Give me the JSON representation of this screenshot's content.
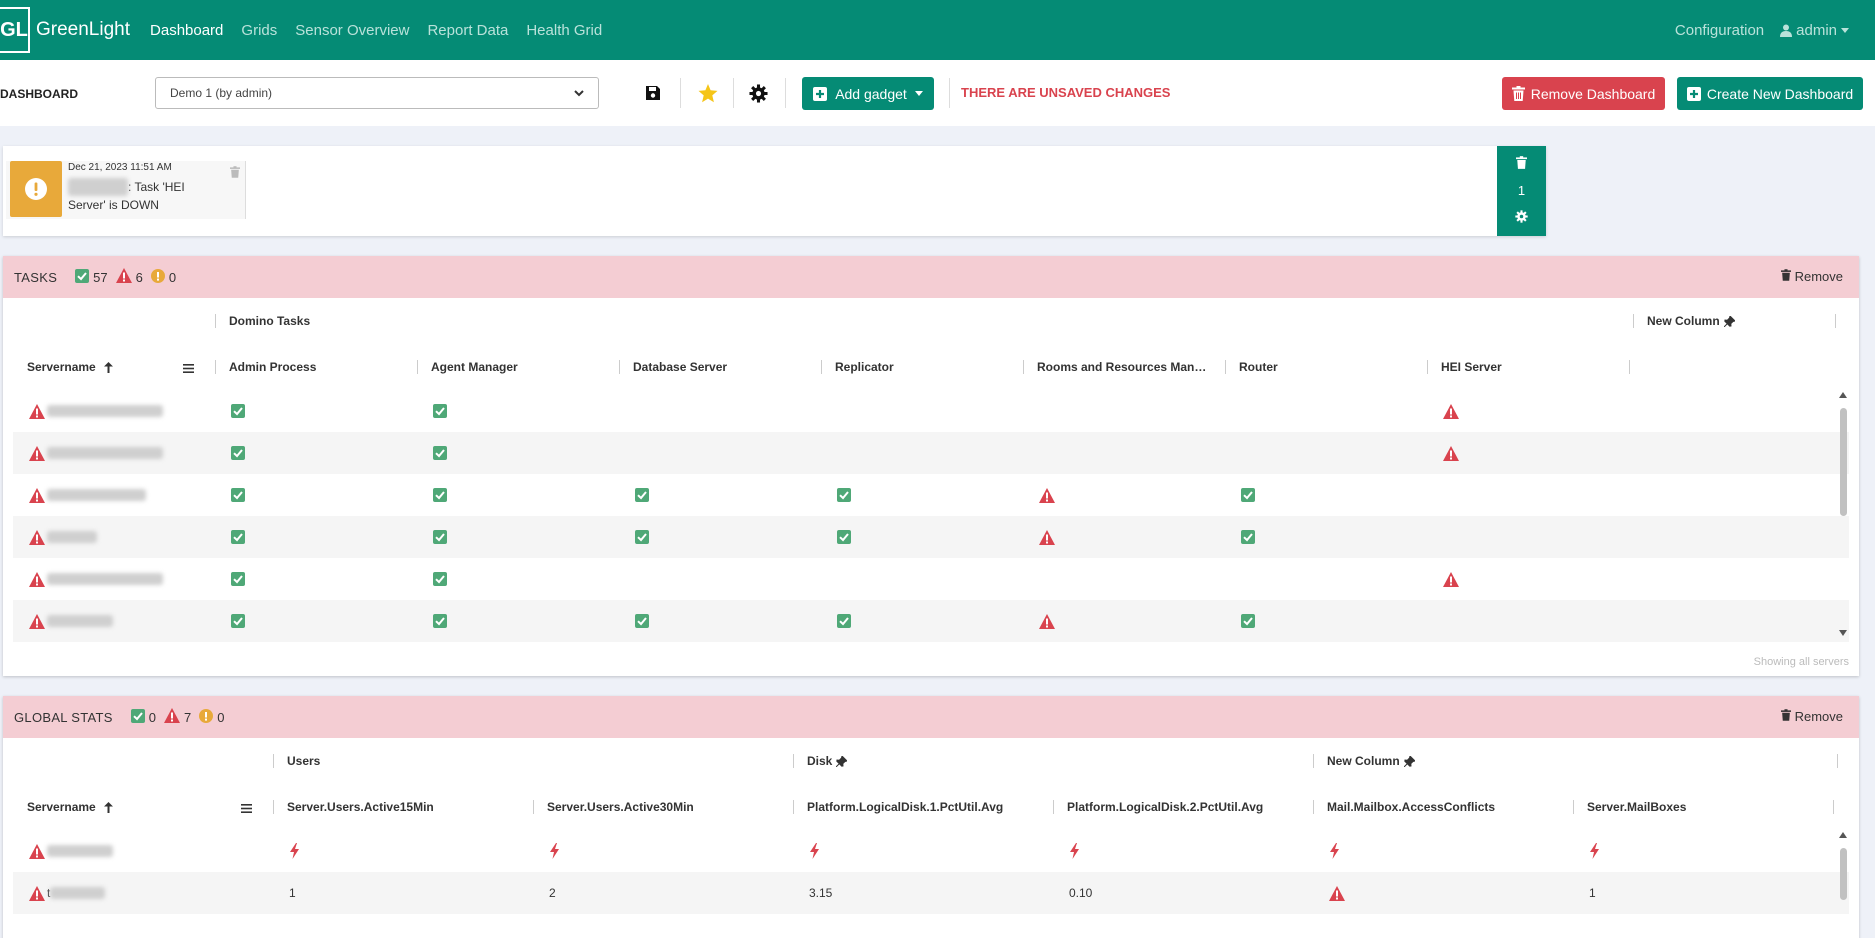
{
  "nav": {
    "brand_logo": "GL",
    "brand": "GreenLight",
    "links": [
      "Dashboard",
      "Grids",
      "Sensor Overview",
      "Report Data",
      "Health Grid"
    ],
    "configuration": "Configuration",
    "user": "admin"
  },
  "toolbar": {
    "label": "DASHBOARD",
    "selected_dashboard": "Demo 1 (by admin)",
    "add_gadget": "Add gadget",
    "unsaved": "THERE ARE UNSAVED CHANGES",
    "remove_dashboard": "Remove Dashboard",
    "create_dashboard": "Create New Dashboard"
  },
  "alert": {
    "date": "Dec 21, 2023 11:51 AM",
    "server_redacted": "xxxxxxxxxx",
    "message": ": Task 'HEI Server' is DOWN",
    "count": "1"
  },
  "tasks": {
    "title": "TASKS",
    "ok": "57",
    "error": "6",
    "warning": "0",
    "remove": "Remove",
    "group_domino": "Domino Tasks",
    "group_new": "New Column",
    "col_servername": "Servername",
    "columns": [
      "Admin Process",
      "Agent Manager",
      "Database Server",
      "Replicator",
      "Rooms and Resources Man…",
      "Router",
      "HEI Server"
    ],
    "footer": "Showing all servers",
    "rows": [
      {
        "name": "xxxxxxxxxxxxxxxxxxxxx",
        "cells": [
          "ok",
          "ok",
          "",
          "",
          "",
          "",
          "err"
        ]
      },
      {
        "name": "xxxxxxxxxxxxxxxxxxxxx",
        "cells": [
          "ok",
          "ok",
          "",
          "",
          "",
          "",
          "err"
        ]
      },
      {
        "name": "xxxxxxxxxxxxxxxxxx",
        "cells": [
          "ok",
          "ok",
          "ok",
          "ok",
          "err",
          "ok",
          ""
        ]
      },
      {
        "name": "xxxxxxxxx",
        "cells": [
          "ok",
          "ok",
          "ok",
          "ok",
          "err",
          "ok",
          ""
        ]
      },
      {
        "name": "xxxxxxxxxxxxxxxxxxxxx",
        "cells": [
          "ok",
          "ok",
          "",
          "",
          "",
          "",
          "err"
        ]
      },
      {
        "name": "xxxxxxxxxxxx",
        "cells": [
          "ok",
          "ok",
          "ok",
          "ok",
          "err",
          "ok",
          ""
        ]
      }
    ]
  },
  "global_stats": {
    "title": "GLOBAL STATS",
    "ok": "0",
    "error": "7",
    "warning": "0",
    "remove": "Remove",
    "group_users": "Users",
    "group_disk": "Disk",
    "group_new": "New Column",
    "col_servername": "Servername",
    "columns": [
      "Server.Users.Active15Min",
      "Server.Users.Active30Min",
      "Platform.LogicalDisk.1.PctUtil.Avg",
      "Platform.LogicalDisk.2.PctUtil.Avg",
      "Mail.Mailbox.AccessConflicts",
      "Server.MailBoxes"
    ],
    "rows": [
      {
        "name": "xxxxxxxxxxxx",
        "cells": [
          "bolt",
          "bolt",
          "bolt",
          "bolt",
          "bolt",
          "bolt"
        ]
      },
      {
        "name_prefix": "t",
        "name": "xxxxxxxxxx",
        "cells": [
          "1",
          "2",
          "3.15",
          "0.10",
          "err",
          "1"
        ]
      }
    ]
  },
  "colors": {
    "primary": "#058b75",
    "danger": "#d9434e",
    "warning": "#e8a93a",
    "ok": "#4fa877",
    "header_error_bg": "#f4cdd3"
  }
}
